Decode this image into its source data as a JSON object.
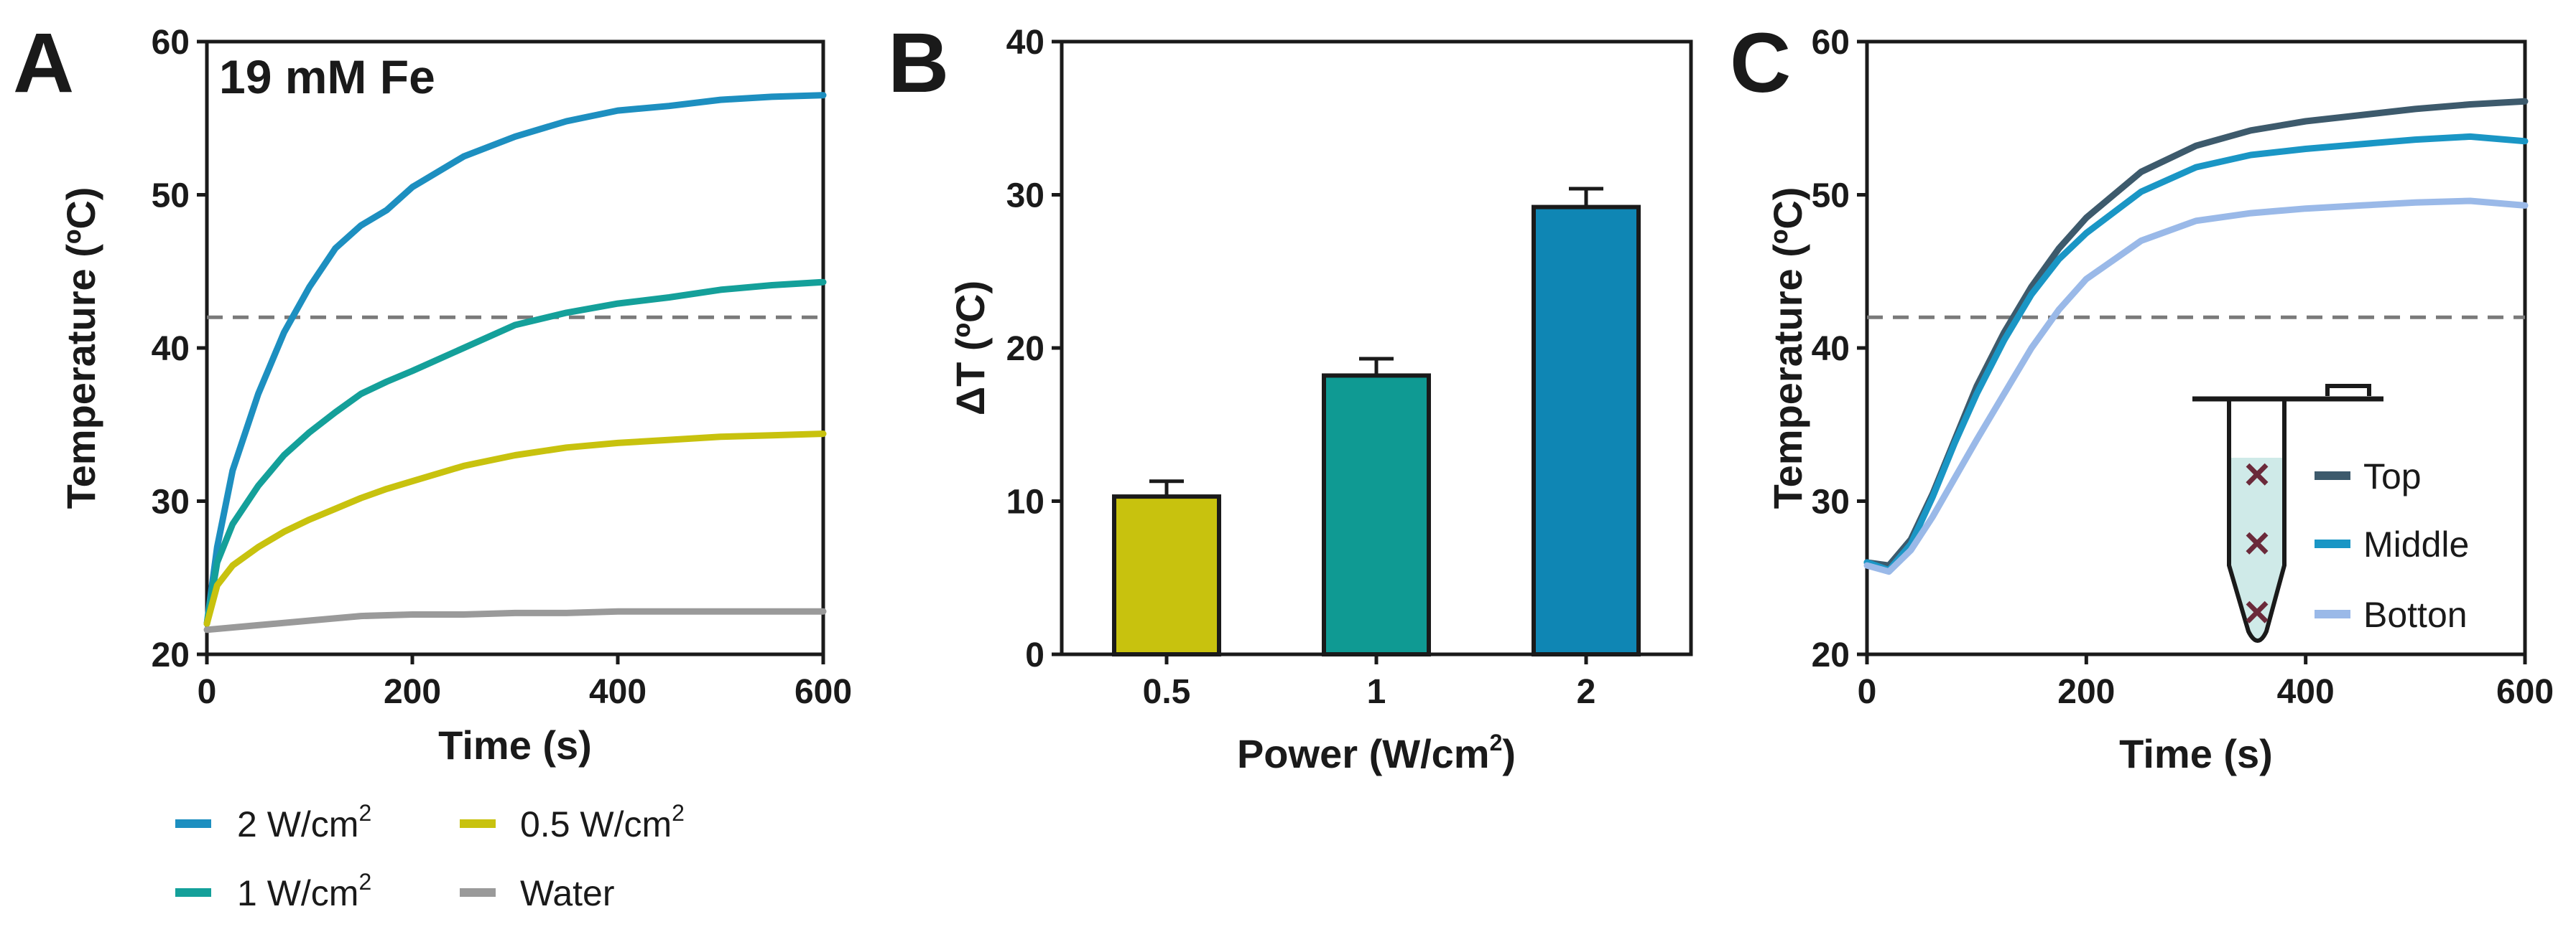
{
  "chart_data": [
    {
      "panel": "A",
      "type": "line",
      "annotation": "19 mM Fe",
      "xlabel": "Time (s)",
      "ylabel": "Temperature (ºC)",
      "xlim": [
        0,
        600
      ],
      "ylim": [
        20,
        60
      ],
      "xticks": [
        "0",
        "200",
        "400",
        "600"
      ],
      "yticks": [
        "20",
        "30",
        "40",
        "50",
        "60"
      ],
      "threshold": 42,
      "series": [
        {
          "name": "2 W/cm",
          "sup": "2",
          "color": "#1d8fc0",
          "x": [
            0,
            10,
            25,
            50,
            75,
            100,
            125,
            150,
            175,
            200,
            250,
            300,
            350,
            400,
            450,
            500,
            550,
            600
          ],
          "y": [
            22,
            27,
            32,
            37,
            41,
            44,
            46.5,
            48,
            49,
            50.5,
            52.5,
            53.8,
            54.8,
            55.5,
            55.8,
            56.2,
            56.4,
            56.5
          ]
        },
        {
          "name": "1 W/cm",
          "sup": "2",
          "color": "#14a09a",
          "x": [
            0,
            10,
            25,
            50,
            75,
            100,
            125,
            150,
            175,
            200,
            250,
            300,
            350,
            400,
            450,
            500,
            550,
            600
          ],
          "y": [
            22,
            26,
            28.5,
            31,
            33,
            34.5,
            35.8,
            37,
            37.8,
            38.5,
            40,
            41.5,
            42.3,
            42.9,
            43.3,
            43.8,
            44.1,
            44.3
          ]
        },
        {
          "name": "0.5 W/cm",
          "sup": "2",
          "color": "#c8c20e",
          "x": [
            0,
            10,
            25,
            50,
            75,
            100,
            125,
            150,
            175,
            200,
            250,
            300,
            350,
            400,
            450,
            500,
            550,
            600
          ],
          "y": [
            22,
            24.5,
            25.8,
            27,
            28,
            28.8,
            29.5,
            30.2,
            30.8,
            31.3,
            32.3,
            33,
            33.5,
            33.8,
            34,
            34.2,
            34.3,
            34.4
          ]
        },
        {
          "name": "Water",
          "sup": "",
          "color": "#9a9a9a",
          "x": [
            0,
            50,
            100,
            150,
            200,
            250,
            300,
            350,
            400,
            450,
            500,
            550,
            600
          ],
          "y": [
            21.6,
            21.9,
            22.2,
            22.5,
            22.6,
            22.6,
            22.7,
            22.7,
            22.8,
            22.8,
            22.8,
            22.8,
            22.8
          ]
        }
      ],
      "legend": [
        {
          "label": "2 W/cm",
          "sup": "2"
        },
        {
          "label": "0.5 W/cm",
          "sup": "2"
        },
        {
          "label": "1 W/cm",
          "sup": "2"
        },
        {
          "label": "Water",
          "sup": ""
        }
      ]
    },
    {
      "panel": "B",
      "type": "bar",
      "xlabel": "Power (W/cm",
      "xlabel_sup": "2",
      "xlabel_end": ")",
      "ylabel": "ΔT (ºC)",
      "ylim": [
        0,
        40
      ],
      "yticks": [
        "0",
        "10",
        "20",
        "30",
        "40"
      ],
      "categories": [
        "0.5",
        "1",
        "2"
      ],
      "values": [
        10.3,
        18.2,
        29.2
      ],
      "errors": [
        1.0,
        1.1,
        1.2
      ],
      "colors": [
        "#c8c20e",
        "#0f9a93",
        "#0f86b4"
      ]
    },
    {
      "panel": "C",
      "type": "line",
      "xlabel": "Time (s)",
      "ylabel": "Temperature (ºC)",
      "xlim": [
        0,
        600
      ],
      "ylim": [
        20,
        60
      ],
      "xticks": [
        "0",
        "200",
        "400",
        "600"
      ],
      "yticks": [
        "20",
        "30",
        "40",
        "50",
        "60"
      ],
      "threshold": 42,
      "series": [
        {
          "name": "Top",
          "color": "#3d5a6c",
          "x": [
            0,
            20,
            40,
            60,
            80,
            100,
            125,
            150,
            175,
            200,
            250,
            300,
            350,
            400,
            450,
            500,
            550,
            600
          ],
          "y": [
            26,
            25.8,
            27.5,
            30.5,
            34,
            37.5,
            41,
            44,
            46.5,
            48.5,
            51.5,
            53.2,
            54.2,
            54.8,
            55.2,
            55.6,
            55.9,
            56.1
          ]
        },
        {
          "name": "Middle",
          "color": "#1a96c5",
          "x": [
            0,
            20,
            40,
            60,
            80,
            100,
            125,
            150,
            175,
            200,
            250,
            300,
            350,
            400,
            450,
            500,
            550,
            600
          ],
          "y": [
            26,
            25.5,
            27.2,
            30.3,
            33.8,
            37,
            40.5,
            43.5,
            45.8,
            47.5,
            50.2,
            51.8,
            52.6,
            53,
            53.3,
            53.6,
            53.8,
            53.5
          ]
        },
        {
          "name": "Botton",
          "color": "#9ab9e8",
          "x": [
            0,
            20,
            40,
            60,
            80,
            100,
            125,
            150,
            175,
            200,
            250,
            300,
            350,
            400,
            450,
            500,
            550,
            600
          ],
          "y": [
            25.8,
            25.4,
            26.8,
            29,
            31.5,
            34,
            37,
            40,
            42.5,
            44.5,
            47,
            48.3,
            48.8,
            49.1,
            49.3,
            49.5,
            49.6,
            49.3
          ]
        }
      ],
      "legend": [
        {
          "label": "Top"
        },
        {
          "label": "Middle"
        },
        {
          "label": "Botton"
        }
      ]
    }
  ]
}
